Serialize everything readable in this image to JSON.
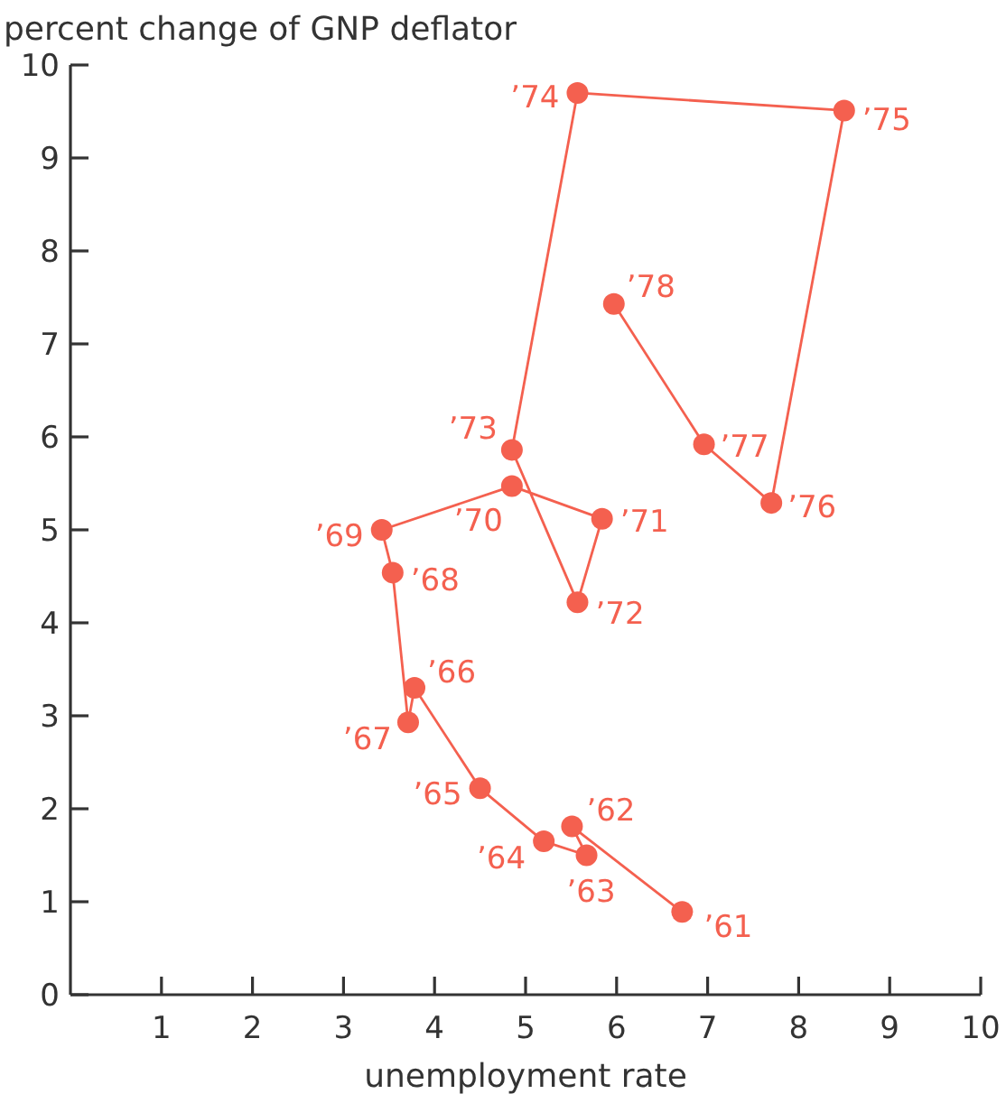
{
  "chart_data": {
    "type": "line",
    "xlabel": "unemployment rate",
    "ylabel": "percent change of GNP deflator",
    "xlim": [
      0,
      10
    ],
    "xticks": [
      1,
      2,
      3,
      4,
      5,
      6,
      7,
      8,
      9,
      10
    ],
    "ylim": [
      0,
      10
    ],
    "yticks": [
      0,
      1,
      2,
      3,
      4,
      5,
      6,
      7,
      8,
      9,
      10
    ],
    "grid": false,
    "marker": "circle",
    "line_style": "solid",
    "series": [
      {
        "color": "#f4604f",
        "x": [
          6.72,
          5.51,
          5.67,
          5.2,
          4.5,
          3.78,
          3.71,
          3.54,
          3.42,
          4.85,
          5.84,
          5.57,
          4.85,
          5.57,
          8.5,
          7.7,
          6.96,
          5.97
        ],
        "values": [
          0.89,
          1.81,
          1.5,
          1.65,
          2.22,
          3.3,
          2.93,
          4.54,
          5.0,
          5.47,
          5.12,
          4.22,
          5.86,
          9.7,
          9.51,
          5.29,
          5.92,
          7.43
        ]
      }
    ],
    "annotations": [
      {
        "text": "’61",
        "x": 6.72,
        "y": 0.89
      },
      {
        "text": "’62",
        "x": 5.51,
        "y": 1.81
      },
      {
        "text": "’63",
        "x": 5.67,
        "y": 1.5
      },
      {
        "text": "’64",
        "x": 5.2,
        "y": 1.65
      },
      {
        "text": "’65",
        "x": 4.5,
        "y": 2.22
      },
      {
        "text": "’66",
        "x": 3.78,
        "y": 3.3
      },
      {
        "text": "’67",
        "x": 3.71,
        "y": 2.93
      },
      {
        "text": "’68",
        "x": 3.54,
        "y": 4.54
      },
      {
        "text": "’69",
        "x": 3.42,
        "y": 5.0
      },
      {
        "text": "’70",
        "x": 4.85,
        "y": 5.47
      },
      {
        "text": "’71",
        "x": 5.84,
        "y": 5.12
      },
      {
        "text": "’72",
        "x": 5.57,
        "y": 4.22
      },
      {
        "text": "’73",
        "x": 4.85,
        "y": 5.86
      },
      {
        "text": "’74",
        "x": 5.57,
        "y": 9.7
      },
      {
        "text": "’75",
        "x": 8.5,
        "y": 9.51
      },
      {
        "text": "’76",
        "x": 7.7,
        "y": 5.29
      },
      {
        "text": "’77",
        "x": 6.96,
        "y": 5.92
      },
      {
        "text": "’78",
        "x": 5.97,
        "y": 7.43
      }
    ]
  }
}
